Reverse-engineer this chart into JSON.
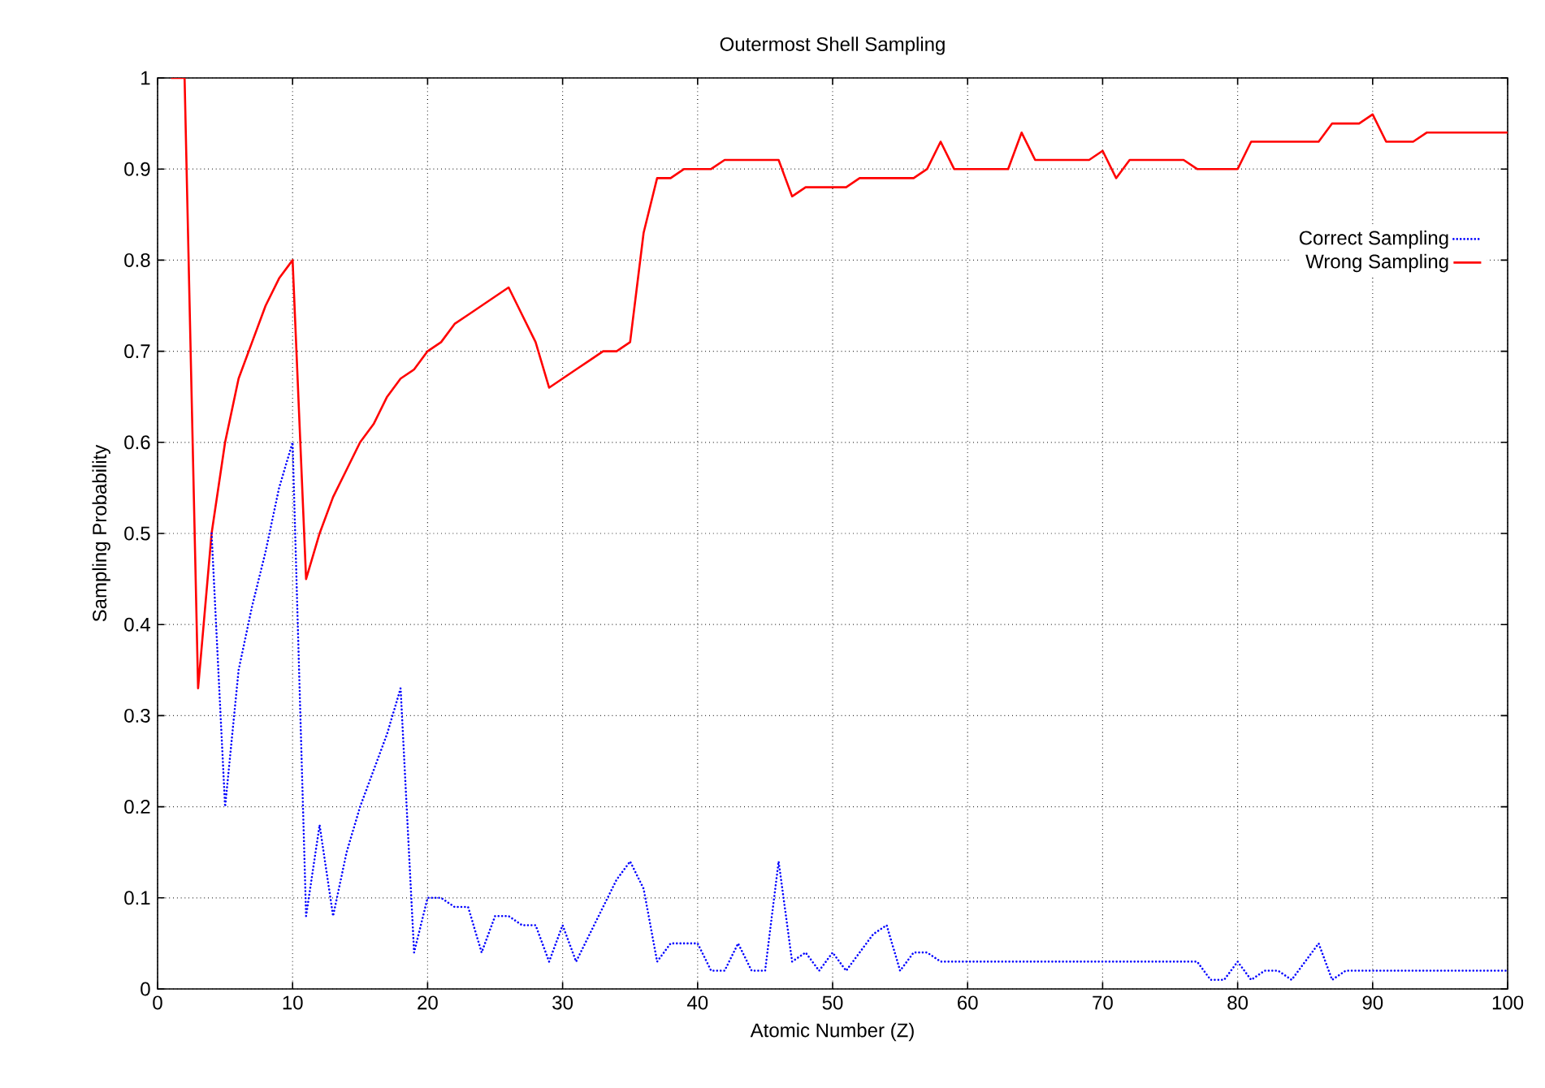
{
  "chart_data": {
    "type": "line",
    "title": "Outermost Shell Sampling",
    "xlabel": "Atomic Number (Z)",
    "ylabel": "Sampling Probability",
    "x": [
      1,
      2,
      3,
      4,
      5,
      6,
      7,
      8,
      9,
      10,
      11,
      12,
      13,
      14,
      15,
      16,
      17,
      18,
      19,
      20,
      21,
      22,
      23,
      24,
      25,
      26,
      27,
      28,
      29,
      30,
      31,
      32,
      33,
      34,
      35,
      36,
      37,
      38,
      39,
      40,
      41,
      42,
      43,
      44,
      45,
      46,
      47,
      48,
      49,
      50,
      51,
      52,
      53,
      54,
      55,
      56,
      57,
      58,
      59,
      60,
      61,
      62,
      63,
      64,
      65,
      66,
      67,
      68,
      69,
      70,
      71,
      72,
      73,
      74,
      75,
      76,
      77,
      78,
      79,
      80,
      81,
      82,
      83,
      84,
      85,
      86,
      87,
      88,
      89,
      90,
      91,
      92,
      93,
      94,
      95,
      96,
      97,
      98,
      99,
      100
    ],
    "series": [
      {
        "name": "Correct Sampling",
        "color": "#0000ff",
        "line_style": "dotted",
        "values": [
          null,
          null,
          null,
          0.5,
          0.2,
          0.35,
          0.42,
          0.48,
          0.55,
          0.6,
          0.08,
          0.18,
          0.08,
          0.15,
          0.2,
          0.24,
          0.28,
          0.33,
          0.04,
          0.1,
          0.1,
          0.09,
          0.09,
          0.04,
          0.08,
          0.08,
          0.07,
          0.07,
          0.03,
          0.07,
          0.03,
          0.06,
          0.09,
          0.12,
          0.14,
          0.11,
          0.03,
          0.05,
          0.05,
          0.05,
          0.02,
          0.02,
          0.05,
          0.02,
          0.02,
          0.14,
          0.03,
          0.04,
          0.02,
          0.04,
          0.02,
          0.04,
          0.06,
          0.07,
          0.02,
          0.04,
          0.04,
          0.03,
          0.03,
          0.03,
          0.03,
          0.03,
          0.03,
          0.03,
          0.03,
          0.03,
          0.03,
          0.03,
          0.03,
          0.03,
          0.03,
          0.03,
          0.03,
          0.03,
          0.03,
          0.03,
          0.03,
          0.01,
          0.01,
          0.03,
          0.01,
          0.02,
          0.02,
          0.01,
          0.03,
          0.05,
          0.01,
          0.02,
          0.02,
          0.02,
          0.02,
          0.02,
          0.02,
          0.02,
          0.02,
          0.02,
          0.02,
          0.02,
          0.02,
          0.02
        ]
      },
      {
        "name": "Wrong Sampling",
        "color": "#ff0000",
        "line_style": "solid",
        "values": [
          1,
          1,
          0.33,
          0.5,
          0.6,
          0.67,
          0.71,
          0.75,
          0.78,
          0.8,
          0.45,
          0.5,
          0.54,
          0.57,
          0.6,
          0.62,
          0.65,
          0.67,
          0.68,
          0.7,
          0.71,
          0.73,
          0.74,
          0.75,
          0.76,
          0.77,
          0.74,
          0.71,
          0.66,
          0.67,
          0.68,
          0.69,
          0.7,
          0.7,
          0.71,
          0.83,
          0.89,
          0.89,
          0.9,
          0.9,
          0.9,
          0.91,
          0.91,
          0.91,
          0.91,
          0.91,
          0.87,
          0.88,
          0.88,
          0.88,
          0.88,
          0.89,
          0.89,
          0.89,
          0.89,
          0.89,
          0.9,
          0.93,
          0.9,
          0.9,
          0.9,
          0.9,
          0.9,
          0.94,
          0.91,
          0.91,
          0.91,
          0.91,
          0.91,
          0.92,
          0.89,
          0.91,
          0.91,
          0.91,
          0.91,
          0.91,
          0.9,
          0.9,
          0.9,
          0.9,
          0.93,
          0.93,
          0.93,
          0.93,
          0.93,
          0.93,
          0.95,
          0.95,
          0.95,
          0.96,
          0.93,
          0.93,
          0.93,
          0.94,
          0.94,
          0.94,
          0.94,
          0.94,
          0.94,
          0.94
        ]
      }
    ],
    "xlim": [
      0,
      100
    ],
    "xticks": [
      0,
      10,
      20,
      30,
      40,
      50,
      60,
      70,
      80,
      90,
      100
    ],
    "ylim": [
      0,
      1
    ],
    "yticks": [
      0,
      0.1,
      0.2,
      0.3,
      0.4,
      0.5,
      0.6,
      0.7,
      0.8,
      0.9,
      1
    ],
    "grid": true,
    "legend": "top right"
  }
}
